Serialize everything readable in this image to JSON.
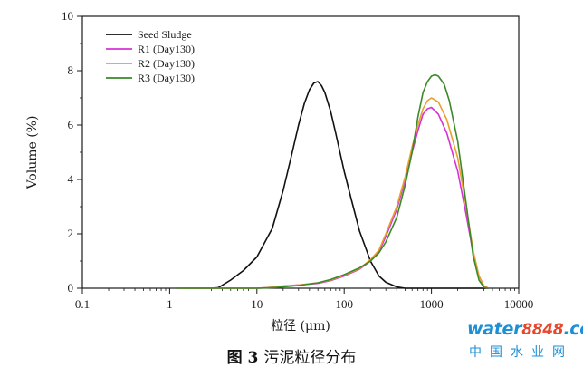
{
  "chart_data": {
    "type": "line",
    "xscale": "log",
    "xlim": [
      0.1,
      10000
    ],
    "ylim": [
      0,
      10
    ],
    "xlabel": "粒径 (μm)",
    "ylabel": "Volume (%)",
    "x_ticks": [
      "0.1",
      "1",
      "10",
      "100",
      "1000",
      "10000"
    ],
    "y_ticks": [
      "0",
      "2",
      "4",
      "6",
      "8",
      "10"
    ],
    "legend_position": "top-left",
    "grid": false,
    "series": [
      {
        "name": "Seed Sludge",
        "color": "#111111",
        "x": [
          1.2,
          2.0,
          3.0,
          3.6,
          5.0,
          7.0,
          10,
          15,
          20,
          25,
          30,
          35,
          40,
          45,
          50,
          55,
          60,
          70,
          80,
          100,
          120,
          150,
          200,
          250,
          300,
          400,
          500,
          700,
          1000,
          2000,
          3000,
          4500
        ],
        "y": [
          0,
          0,
          0,
          0.02,
          0.3,
          0.65,
          1.15,
          2.2,
          3.6,
          4.9,
          6.0,
          6.8,
          7.3,
          7.55,
          7.6,
          7.45,
          7.2,
          6.5,
          5.7,
          4.3,
          3.3,
          2.1,
          1.0,
          0.45,
          0.22,
          0.05,
          0,
          0,
          0,
          0,
          0,
          0
        ]
      },
      {
        "name": "R1 (Day130)",
        "color": "#d633d6",
        "x": [
          1.2,
          10,
          13,
          20,
          30,
          50,
          70,
          100,
          150,
          200,
          250,
          300,
          400,
          500,
          600,
          700,
          800,
          900,
          1000,
          1200,
          1500,
          2000,
          2500,
          3000,
          3500,
          4000,
          4500
        ],
        "y": [
          0,
          0,
          0.02,
          0.08,
          0.12,
          0.18,
          0.28,
          0.45,
          0.7,
          1.0,
          1.35,
          1.9,
          2.9,
          4.0,
          5.0,
          5.8,
          6.4,
          6.6,
          6.65,
          6.4,
          5.7,
          4.3,
          2.7,
          1.3,
          0.45,
          0.08,
          0
        ]
      },
      {
        "name": "R2 (Day130)",
        "color": "#e8a030",
        "x": [
          1.2,
          10,
          13,
          20,
          30,
          50,
          70,
          100,
          150,
          200,
          250,
          300,
          400,
          500,
          600,
          700,
          800,
          900,
          1000,
          1200,
          1500,
          2000,
          2500,
          3000,
          3500,
          4000,
          4500
        ],
        "y": [
          0,
          0,
          0.02,
          0.07,
          0.12,
          0.2,
          0.3,
          0.48,
          0.72,
          1.05,
          1.4,
          2.0,
          3.0,
          4.1,
          5.2,
          6.0,
          6.6,
          6.9,
          7.0,
          6.85,
          6.2,
          4.8,
          3.0,
          1.4,
          0.45,
          0.08,
          0
        ]
      },
      {
        "name": "R3 (Day130)",
        "color": "#3a8a2a",
        "x": [
          1.2,
          10,
          15,
          20,
          30,
          50,
          70,
          100,
          150,
          200,
          250,
          300,
          400,
          500,
          600,
          700,
          800,
          900,
          1000,
          1100,
          1200,
          1400,
          1600,
          2000,
          2500,
          3000,
          3500,
          4000,
          4500
        ],
        "y": [
          0,
          0,
          0.02,
          0.05,
          0.1,
          0.2,
          0.32,
          0.5,
          0.75,
          1.0,
          1.3,
          1.7,
          2.6,
          3.8,
          5.0,
          6.3,
          7.2,
          7.6,
          7.8,
          7.85,
          7.8,
          7.5,
          6.9,
          5.4,
          3.1,
          1.2,
          0.3,
          0.03,
          0
        ]
      }
    ]
  },
  "caption": {
    "figure_label": "图 3",
    "text": "污泥粒径分布"
  },
  "watermark": {
    "brand_word": "water",
    "brand_number": "8848",
    "brand_suffix": ".com",
    "subtitle": "中国水业网"
  }
}
